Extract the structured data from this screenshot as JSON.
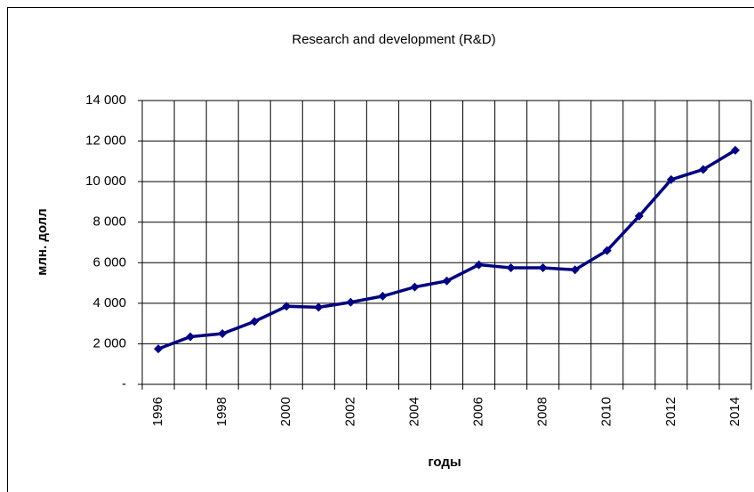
{
  "chart_data": {
    "type": "line",
    "title": "Research and development (R&D)",
    "x_label": "годы",
    "y_label": "млн. долл",
    "categories": [
      "1996",
      null,
      "1998",
      null,
      "2000",
      null,
      "2002",
      null,
      "2004",
      null,
      "2006",
      null,
      "2008",
      null,
      "2010",
      null,
      "2012",
      null,
      "2014"
    ],
    "series": [
      {
        "name": "R&D",
        "color": "#000080",
        "values": [
          1750,
          2350,
          2500,
          3100,
          3850,
          3800,
          4050,
          4350,
          4800,
          5100,
          5900,
          5750,
          5750,
          5650,
          6600,
          8300,
          10100,
          10600,
          11550
        ]
      }
    ],
    "ylim": [
      0,
      14000
    ],
    "yticks": [
      {
        "value": 0,
        "label": "-"
      },
      {
        "value": 2000,
        "label": "2 000"
      },
      {
        "value": 4000,
        "label": "4 000"
      },
      {
        "value": 6000,
        "label": "6 000"
      },
      {
        "value": 8000,
        "label": "8 000"
      },
      {
        "value": 10000,
        "label": "10 000"
      },
      {
        "value": 12000,
        "label": "12 000"
      },
      {
        "value": 14000,
        "label": "14 000"
      }
    ],
    "grid": true
  }
}
